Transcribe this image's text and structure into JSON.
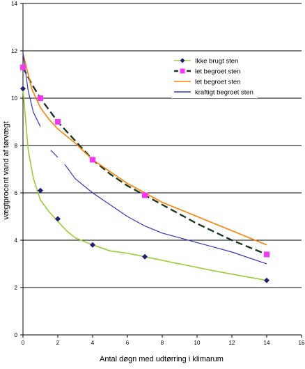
{
  "chart_data": {
    "type": "line",
    "xlabel": "Antal døgn med udtørring i klimarum",
    "ylabel": "vægtprocent vand af tørvægt",
    "xlim": [
      0,
      16
    ],
    "ylim": [
      0,
      14
    ],
    "x_ticks": [
      0,
      2,
      4,
      6,
      8,
      10,
      12,
      14,
      16
    ],
    "y_ticks": [
      0,
      2,
      4,
      6,
      8,
      10,
      12,
      14
    ],
    "grid": "horizontal major gridlines",
    "legend_position": "upper-right, inside plot",
    "series": [
      {
        "name": "Ikke brugt sten",
        "color": "#9ACD32",
        "marker_color": "#1F1F7A",
        "marker": "diamond",
        "x": [
          0,
          1,
          2,
          4,
          7,
          14
        ],
        "y": [
          10.4,
          6.1,
          4.9,
          3.8,
          3.3,
          2.3
        ],
        "curve_x": [
          0,
          0.3,
          0.6,
          1,
          1.5,
          2,
          2.5,
          3,
          4,
          5,
          6,
          7,
          9,
          11,
          14
        ],
        "curve_y": [
          10.4,
          7.8,
          6.6,
          5.7,
          5.2,
          4.8,
          4.4,
          4.1,
          3.8,
          3.55,
          3.45,
          3.3,
          3.0,
          2.7,
          2.3
        ]
      },
      {
        "name": "let begroet sten",
        "color": "#1A3A1A",
        "marker_color": "#FF33FF",
        "marker": "square",
        "dashed": true,
        "x": [
          0,
          1,
          2,
          4,
          7,
          14
        ],
        "y": [
          11.3,
          10.0,
          9.0,
          7.4,
          5.9,
          3.4
        ],
        "curve_x": [
          0,
          0.5,
          1,
          1.5,
          2,
          3,
          4,
          5,
          6,
          7,
          8,
          10,
          12,
          14
        ],
        "curve_y": [
          11.3,
          10.6,
          10.0,
          9.5,
          9.0,
          8.2,
          7.4,
          6.8,
          6.3,
          5.9,
          5.5,
          4.7,
          4.0,
          3.4
        ]
      },
      {
        "name": "let begroet sten",
        "color": "#FF7F00",
        "marker": "none",
        "x": [
          0,
          0.5,
          1,
          1.5,
          2,
          3,
          4,
          5,
          6,
          7,
          8,
          10,
          12,
          14
        ],
        "y": [
          11.9,
          10.4,
          9.6,
          9.1,
          8.7,
          8.1,
          7.4,
          6.9,
          6.4,
          6.0,
          5.6,
          5.0,
          4.4,
          3.8
        ]
      },
      {
        "name": "kraftigt begroet sten",
        "color": "#3333CC",
        "marker": "none",
        "segments": [
          {
            "x": [
              0,
              0.3,
              0.6,
              1.0
            ],
            "y": [
              11.9,
              10.3,
              9.4,
              8.8
            ]
          },
          {
            "x": [
              1.6,
              2.0
            ],
            "y": [
              7.8,
              7.5
            ]
          },
          {
            "x": [
              2.4,
              3.0,
              4.0,
              5.0,
              6.0,
              7.0,
              8.0,
              9.0,
              10.0,
              11.0,
              12.0,
              13.0,
              14.0
            ],
            "y": [
              7.2,
              6.6,
              6.0,
              5.5,
              5.0,
              4.6,
              4.3,
              4.1,
              3.9,
              3.7,
              3.5,
              3.25,
              3.0
            ]
          }
        ]
      }
    ]
  }
}
